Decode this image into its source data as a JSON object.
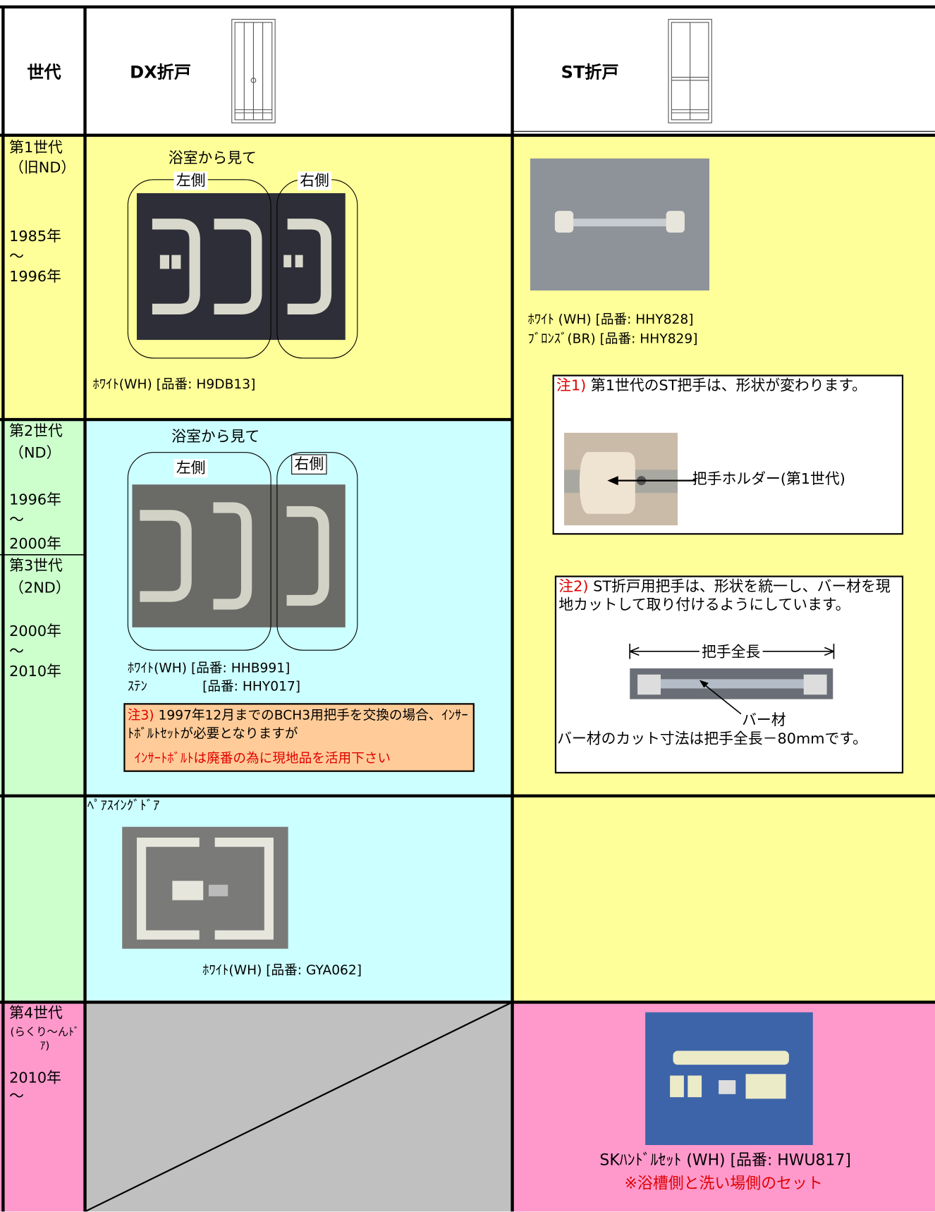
{
  "header": {
    "generation": "世代",
    "dx": "DX折戸",
    "st": "ST折戸"
  },
  "gen1": {
    "name": "第1世代",
    "code": "（旧ND）",
    "from": "1985年",
    "tilde": "～",
    "to": "1996年",
    "dx": {
      "view": "浴室から見て",
      "left": "左側",
      "right": "右側",
      "item": "ﾎﾜｲﾄ(WH) [品番: H9DB13]"
    },
    "st": {
      "item1": "ﾎﾜｲﾄ (WH) [品番: HHY828]",
      "item2": "ﾌﾞﾛﾝｽﾞ(BR) [品番: HHY829]"
    }
  },
  "note1": {
    "label": "注1)",
    "text": "第1世代のST把手は、形状が変わります。",
    "callout": "把手ホルダー(第1世代)"
  },
  "note2": {
    "label": "注2)",
    "text": "ST折戸用把手は、形状を統一し、バー材を現地カットして取り付けるようにしています。",
    "length": "把手全長",
    "bar": "バー材",
    "cut": "バー材のカット寸法は把手全長－80mmです。"
  },
  "gen2": {
    "name": "第2世代",
    "code": "（ND）",
    "from": "1996年",
    "tilde": "～",
    "to": "2000年"
  },
  "gen3": {
    "name": "第3世代",
    "code": "（2ND）",
    "from": "2000年",
    "tilde": "～",
    "to": "2010年",
    "dx": {
      "view": "浴室から見て",
      "left": "左側",
      "right": "右側",
      "item1": "ﾎﾜｲﾄ(WH) [品番: HHB991]",
      "item2_name": "ｽﾃﾝ",
      "item2_code": "[品番: HHY017]"
    }
  },
  "note3": {
    "label": "注3)",
    "text": "1997年12月までのBCH3用把手を交換の場合、ｲﾝｻｰﾄﾎﾞﾙﾄｾｯﾄが必要となりますが",
    "warning": "ｲﾝｻｰﾄﾎﾞﾙﾄは廃番の為に現地品を活用下さい"
  },
  "pair": {
    "title": "ﾍﾟｱｽｲﾝｸﾞﾄﾞｱ",
    "item": "ﾎﾜｲﾄ(WH) [品番: GYA062]"
  },
  "gen4": {
    "name": "第4世代",
    "code": "(らくり～んﾄﾞｱ)",
    "from": "2010年",
    "tilde": "～",
    "st": {
      "item": "SKﾊﾝﾄﾞﾙｾｯﾄ (WH) [品番: HWU817]",
      "note": "※浴槽側と洗い場側のセット"
    }
  }
}
